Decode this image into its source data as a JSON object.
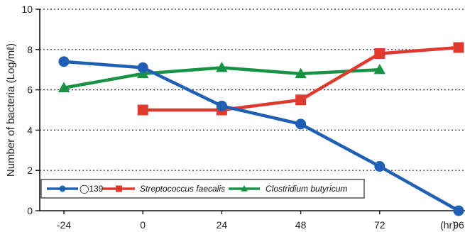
{
  "chart_data": {
    "type": "line",
    "title": "",
    "xlabel": "",
    "x_unit": "(hr)",
    "ylabel": "Number of bacteria (Log/mℓ)",
    "x_ticks": [
      -24,
      0,
      24,
      48,
      72,
      96
    ],
    "y_ticks": [
      0,
      2,
      4,
      6,
      8,
      10
    ],
    "xlim": [
      -24,
      96
    ],
    "ylim": [
      0,
      10
    ],
    "grid": "horizontal dotted",
    "legend_position": "bottom-left",
    "series": [
      {
        "name": "◯139",
        "color": "#1f5fb4",
        "marker": "circle",
        "points": [
          [
            -24,
            7.4
          ],
          [
            0,
            7.1
          ],
          [
            24,
            5.2
          ],
          [
            48,
            4.3
          ],
          [
            72,
            2.2
          ],
          [
            96,
            0.0
          ]
        ]
      },
      {
        "name": "Streptococcus faecalis",
        "italic": true,
        "color": "#e03a2f",
        "marker": "square",
        "points": [
          [
            0,
            5.0
          ],
          [
            24,
            5.0
          ],
          [
            48,
            5.5
          ],
          [
            72,
            7.8
          ],
          [
            96,
            8.1
          ]
        ]
      },
      {
        "name": "Clostridium butyricum",
        "italic": true,
        "color": "#179245",
        "marker": "triangle",
        "points": [
          [
            -24,
            6.1
          ],
          [
            0,
            6.8
          ],
          [
            24,
            7.1
          ],
          [
            48,
            6.8
          ],
          [
            72,
            7.0
          ]
        ]
      }
    ]
  }
}
